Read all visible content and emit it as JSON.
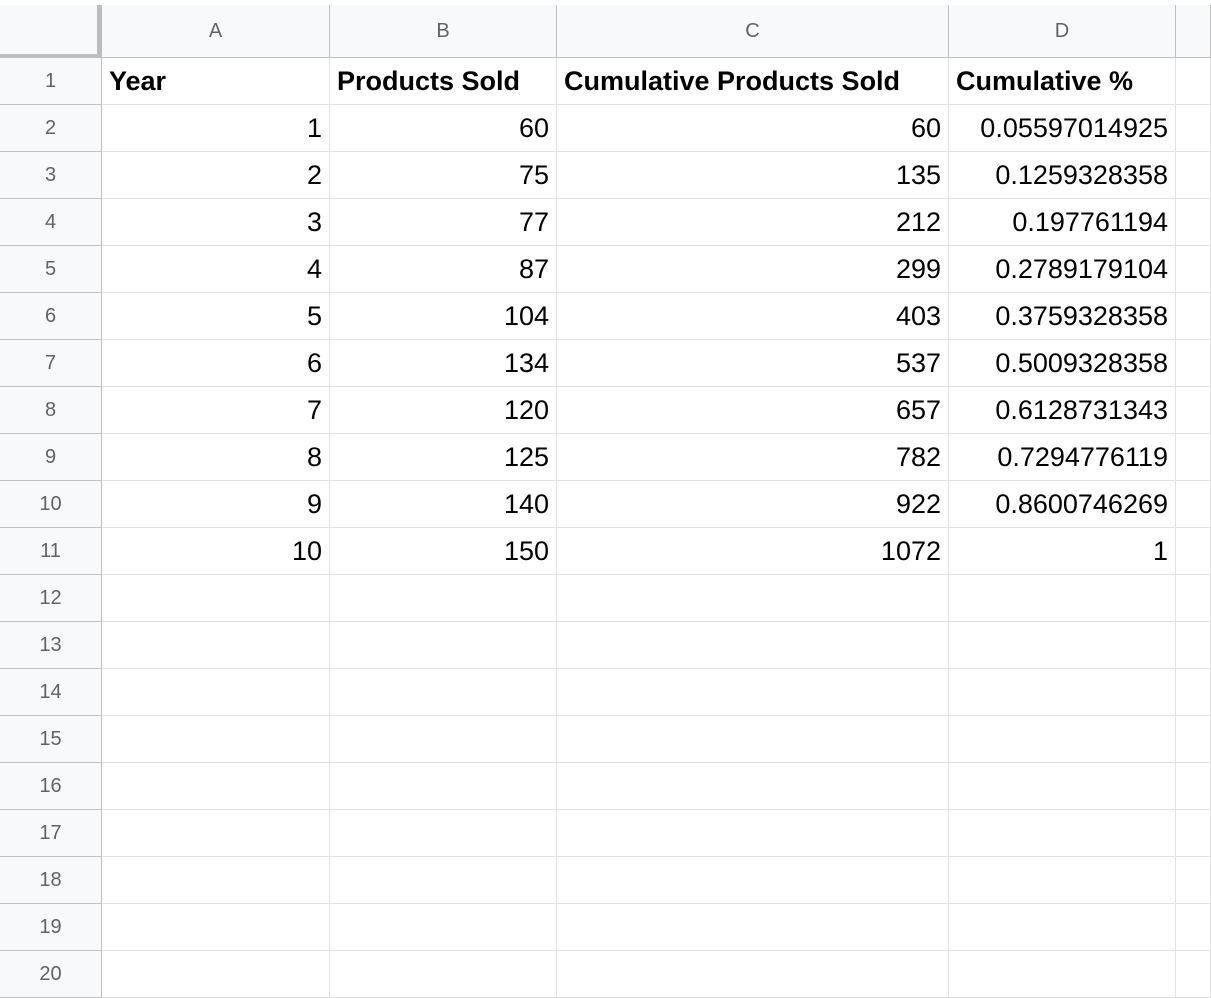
{
  "columns": [
    "A",
    "B",
    "C",
    "D"
  ],
  "row_numbers": [
    1,
    2,
    3,
    4,
    5,
    6,
    7,
    8,
    9,
    10,
    11,
    12,
    13,
    14,
    15,
    16,
    17,
    18,
    19,
    20
  ],
  "table": {
    "header": [
      "Year",
      "Products Sold",
      "Cumulative Products Sold",
      "Cumulative %"
    ],
    "rows": [
      [
        1,
        60,
        60,
        0.05597014925
      ],
      [
        2,
        75,
        135,
        0.1259328358
      ],
      [
        3,
        77,
        212,
        0.197761194
      ],
      [
        4,
        87,
        299,
        0.2789179104
      ],
      [
        5,
        104,
        403,
        0.3759328358
      ],
      [
        6,
        134,
        537,
        0.5009328358
      ],
      [
        7,
        120,
        657,
        0.6128731343
      ],
      [
        8,
        125,
        782,
        0.7294776119
      ],
      [
        9,
        140,
        922,
        0.8600746269
      ],
      [
        10,
        150,
        1072,
        1
      ]
    ]
  }
}
